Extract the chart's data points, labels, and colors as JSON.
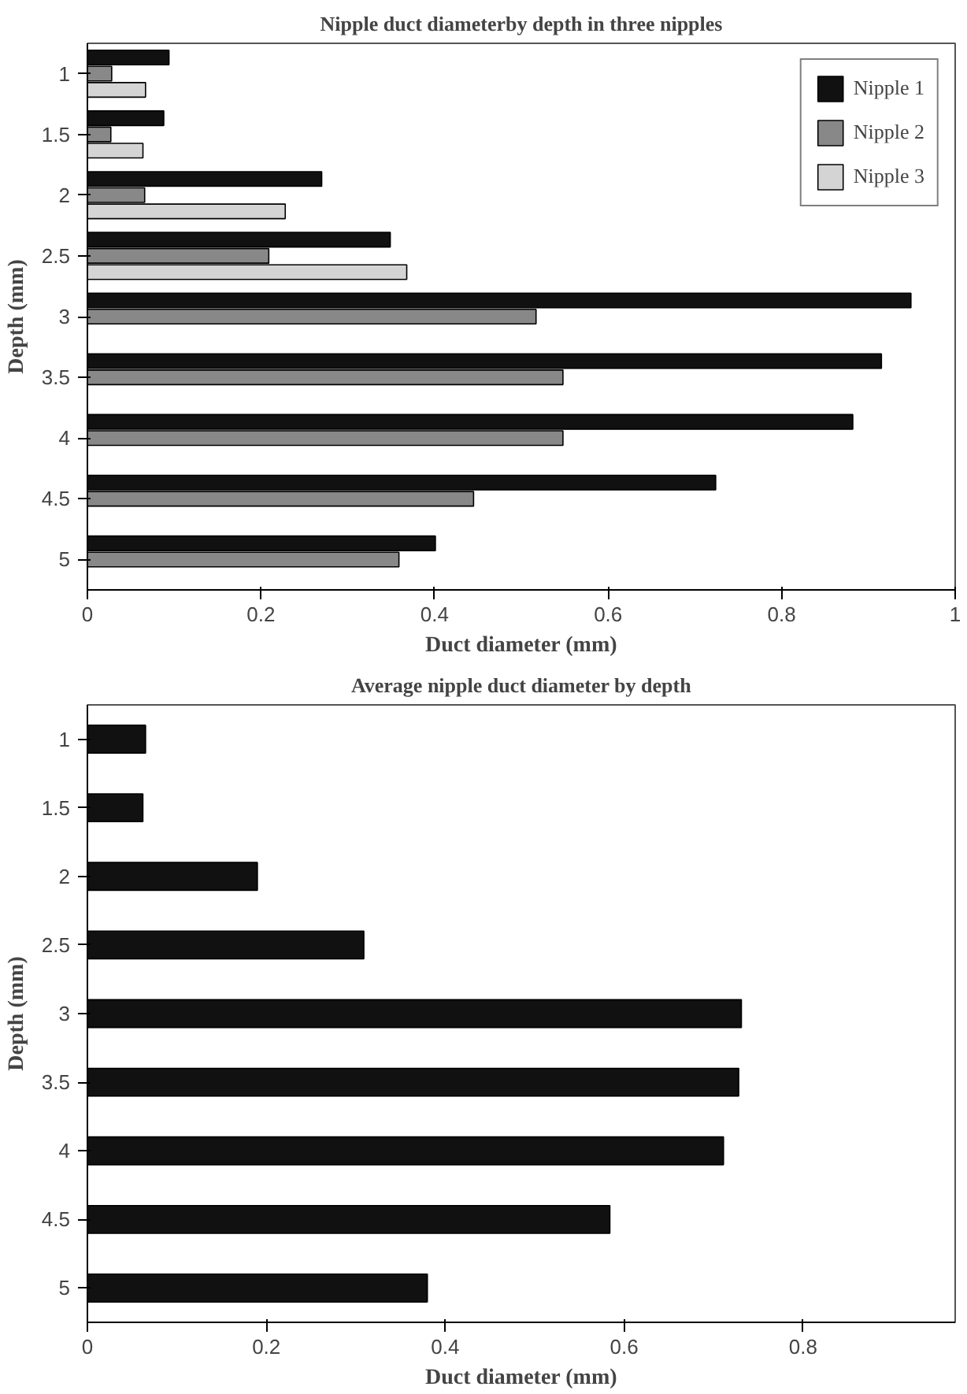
{
  "chart_data": [
    {
      "type": "bar",
      "orientation": "horizontal",
      "title": "Nipple duct diameterby depth in three nipples",
      "xlabel": "Duct diameter (mm)",
      "ylabel": "Depth (mm)",
      "categories": [
        "1",
        "1.5",
        "2",
        "2.5",
        "3",
        "3.5",
        "4",
        "4.5",
        "5"
      ],
      "series": [
        {
          "name": "Nipple 1",
          "color": "#111111",
          "values": [
            0.094,
            0.088,
            0.27,
            0.349,
            0.949,
            0.915,
            0.882,
            0.724,
            0.401
          ]
        },
        {
          "name": "Nipple 2",
          "color": "#888888",
          "values": [
            0.028,
            0.027,
            0.066,
            0.209,
            0.517,
            0.548,
            0.548,
            0.445,
            0.359
          ]
        },
        {
          "name": "Nipple 3",
          "color": "#d4d4d4",
          "values": [
            0.067,
            0.064,
            0.228,
            0.368,
            null,
            null,
            null,
            null,
            null
          ]
        }
      ],
      "xlim": [
        0,
        1
      ],
      "xticks": [
        0,
        0.2,
        0.4,
        0.6,
        0.8,
        1
      ],
      "grid": false,
      "legend": "top right"
    },
    {
      "type": "bar",
      "orientation": "horizontal",
      "title": "Average nipple duct diameter by depth",
      "xlabel": "Duct diameter (mm)",
      "ylabel": "Depth (mm)",
      "categories": [
        "1",
        "1.5",
        "2",
        "2.5",
        "3",
        "3.5",
        "4",
        "4.5",
        "5"
      ],
      "series": [
        {
          "color": "#111111",
          "values": [
            0.065,
            0.062,
            0.19,
            0.309,
            0.731,
            0.728,
            0.711,
            0.584,
            0.38
          ]
        }
      ],
      "xlim": [
        0,
        0.97
      ],
      "xticks": [
        0,
        0.2,
        0.4,
        0.6,
        0.8
      ],
      "grid": false,
      "legend": false
    }
  ]
}
